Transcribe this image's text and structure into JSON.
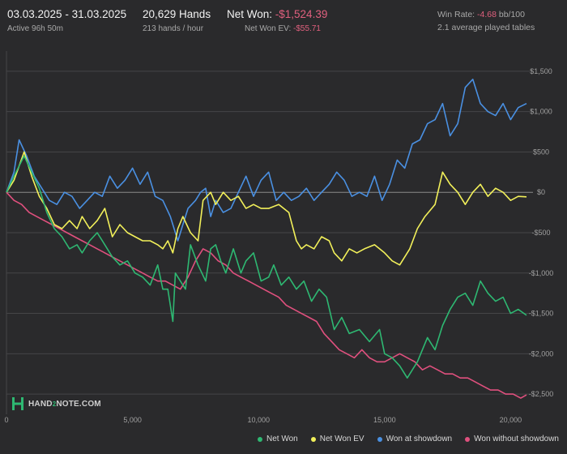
{
  "header": {
    "date_range": "03.03.2025 - 31.03.2025",
    "active": "Active 96h 50m",
    "hands": "20,629 Hands",
    "hands_rate": "213 hands / hour",
    "net_won_label": "Net Won: ",
    "net_won_value": "-$1,524.39",
    "net_won_ev_label": "Net Won  EV: ",
    "net_won_ev_value": "-$55.71",
    "win_rate_label": "Win Rate: ",
    "win_rate_value": "-4.68",
    "win_rate_unit": " bb/100",
    "tables": "2.1 average played tables"
  },
  "logo": {
    "part1": "HAND",
    "part2": "2",
    "part3": "NOTE.COM"
  },
  "colors": {
    "net_won": "#2eb872",
    "net_won_ev": "#f2f05a",
    "won_at_showdown": "#4a90e2",
    "won_without_showdown": "#e0507e",
    "negative_text": "#e0607e"
  },
  "chart_data": {
    "type": "line",
    "xlim": [
      0,
      20629
    ],
    "ylim": [
      -2750,
      1750
    ],
    "x_ticks": [
      0,
      5000,
      10000,
      15000,
      20000
    ],
    "x_tick_labels": [
      "0",
      "5,000",
      "10,000",
      "15,000",
      "20,000"
    ],
    "y_ticks": [
      1500,
      1000,
      500,
      0,
      -500,
      -1000,
      -1500,
      -2000,
      -2500
    ],
    "y_tick_labels": [
      "$1,500",
      "$1,000",
      "$500",
      "$0",
      "-$500",
      "-$1,000",
      "-$1,500",
      "-$2,000",
      "-$2,500"
    ],
    "grid": true,
    "legend_position": "bottom-right",
    "series": [
      {
        "name": "Net Won",
        "color": "#2eb872",
        "x": [
          0,
          300,
          700,
          1000,
          1300,
          1600,
          1900,
          2200,
          2500,
          2800,
          3000,
          3300,
          3600,
          3900,
          4200,
          4500,
          4800,
          5100,
          5400,
          5700,
          6000,
          6200,
          6400,
          6600,
          6700,
          6900,
          7100,
          7300,
          7600,
          7900,
          8100,
          8300,
          8500,
          8700,
          9000,
          9300,
          9500,
          9800,
          10100,
          10400,
          10600,
          10900,
          11200,
          11500,
          11800,
          12100,
          12400,
          12700,
          13000,
          13300,
          13600,
          14000,
          14400,
          14800,
          15000,
          15300,
          15600,
          15900,
          16300,
          16700,
          17000,
          17300,
          17600,
          17900,
          18200,
          18500,
          18800,
          19100,
          19400,
          19700,
          20000,
          20300,
          20629
        ],
        "y": [
          0,
          200,
          450,
          250,
          50,
          -250,
          -450,
          -550,
          -700,
          -650,
          -750,
          -600,
          -500,
          -650,
          -800,
          -900,
          -850,
          -1000,
          -1050,
          -1150,
          -900,
          -1200,
          -1200,
          -1600,
          -1000,
          -1100,
          -1200,
          -650,
          -900,
          -1100,
          -700,
          -650,
          -850,
          -1000,
          -700,
          -1000,
          -850,
          -750,
          -1100,
          -1050,
          -900,
          -1150,
          -1050,
          -1200,
          -1100,
          -1350,
          -1200,
          -1300,
          -1700,
          -1550,
          -1750,
          -1700,
          -1850,
          -1700,
          -2000,
          -2050,
          -2150,
          -2300,
          -2100,
          -1800,
          -1950,
          -1650,
          -1450,
          -1300,
          -1250,
          -1400,
          -1100,
          -1250,
          -1350,
          -1300,
          -1500,
          -1450,
          -1524
        ]
      },
      {
        "name": "Net Won  EV",
        "color": "#f2f05a",
        "x": [
          0,
          300,
          700,
          1000,
          1300,
          1600,
          1900,
          2200,
          2500,
          2800,
          3000,
          3300,
          3600,
          3900,
          4200,
          4500,
          4800,
          5100,
          5400,
          5700,
          6000,
          6200,
          6400,
          6600,
          6800,
          7000,
          7300,
          7600,
          7800,
          8100,
          8300,
          8600,
          8900,
          9200,
          9500,
          9800,
          10100,
          10400,
          10800,
          11200,
          11500,
          11700,
          11900,
          12200,
          12500,
          12800,
          13000,
          13300,
          13600,
          13900,
          14200,
          14600,
          15000,
          15300,
          15600,
          16000,
          16300,
          16600,
          17000,
          17300,
          17600,
          17900,
          18200,
          18500,
          18800,
          19100,
          19400,
          19700,
          20000,
          20300,
          20629
        ],
        "y": [
          0,
          150,
          500,
          200,
          -50,
          -200,
          -400,
          -450,
          -350,
          -450,
          -300,
          -450,
          -350,
          -200,
          -550,
          -400,
          -500,
          -550,
          -600,
          -600,
          -650,
          -700,
          -600,
          -750,
          -450,
          -300,
          -500,
          -600,
          -100,
          0,
          -150,
          0,
          -100,
          -50,
          -200,
          -150,
          -200,
          -200,
          -150,
          -250,
          -600,
          -700,
          -650,
          -700,
          -550,
          -600,
          -750,
          -850,
          -700,
          -750,
          -700,
          -650,
          -750,
          -850,
          -900,
          -700,
          -450,
          -300,
          -150,
          250,
          100,
          0,
          -150,
          0,
          100,
          -50,
          50,
          0,
          -100,
          -50,
          -56
        ]
      },
      {
        "name": "Won at showdown",
        "color": "#4a90e2",
        "x": [
          0,
          300,
          500,
          800,
          1100,
          1400,
          1700,
          2000,
          2300,
          2600,
          2900,
          3200,
          3500,
          3800,
          4100,
          4400,
          4700,
          5000,
          5300,
          5600,
          5900,
          6200,
          6500,
          6800,
          7000,
          7200,
          7500,
          7700,
          7900,
          8100,
          8300,
          8600,
          8900,
          9200,
          9500,
          9800,
          10100,
          10400,
          10700,
          11000,
          11300,
          11600,
          11900,
          12200,
          12500,
          12800,
          13100,
          13400,
          13700,
          14000,
          14300,
          14600,
          14900,
          15200,
          15500,
          15800,
          16100,
          16400,
          16700,
          17000,
          17300,
          17600,
          17900,
          18200,
          18500,
          18800,
          19100,
          19400,
          19700,
          20000,
          20300,
          20629
        ],
        "y": [
          0,
          250,
          650,
          450,
          200,
          50,
          -100,
          -150,
          0,
          -50,
          -200,
          -100,
          0,
          -50,
          200,
          50,
          150,
          300,
          100,
          250,
          -50,
          -100,
          -300,
          -600,
          -400,
          -200,
          -100,
          0,
          50,
          -300,
          -100,
          -250,
          -200,
          0,
          200,
          -50,
          150,
          250,
          -100,
          0,
          -100,
          -50,
          50,
          -100,
          0,
          100,
          250,
          150,
          -50,
          0,
          -50,
          200,
          -100,
          100,
          400,
          300,
          600,
          650,
          850,
          900,
          1100,
          700,
          850,
          1300,
          1400,
          1100,
          1000,
          950,
          1100,
          900,
          1050,
          1100
        ]
      },
      {
        "name": "Won without showdown",
        "color": "#e0507e",
        "x": [
          0,
          300,
          600,
          900,
          1200,
          1500,
          1800,
          2100,
          2400,
          2700,
          3000,
          3300,
          3600,
          3900,
          4200,
          4500,
          4800,
          5100,
          5400,
          5700,
          6000,
          6300,
          6600,
          6900,
          7200,
          7500,
          7800,
          8100,
          8400,
          8700,
          9000,
          9300,
          9600,
          9900,
          10200,
          10500,
          10800,
          11100,
          11400,
          11700,
          12000,
          12300,
          12600,
          12900,
          13200,
          13500,
          13800,
          14100,
          14400,
          14700,
          15000,
          15300,
          15600,
          15900,
          16200,
          16500,
          16800,
          17100,
          17400,
          17700,
          18000,
          18300,
          18600,
          18900,
          19200,
          19500,
          19800,
          20100,
          20400,
          20629
        ],
        "y": [
          0,
          -100,
          -150,
          -250,
          -300,
          -350,
          -400,
          -450,
          -500,
          -550,
          -600,
          -650,
          -700,
          -750,
          -800,
          -850,
          -900,
          -950,
          -1000,
          -1050,
          -1100,
          -1100,
          -1150,
          -1200,
          -1050,
          -850,
          -700,
          -750,
          -850,
          -900,
          -1000,
          -1050,
          -1100,
          -1150,
          -1200,
          -1250,
          -1300,
          -1400,
          -1450,
          -1500,
          -1550,
          -1600,
          -1750,
          -1850,
          -1950,
          -2000,
          -2050,
          -1950,
          -2050,
          -2100,
          -2100,
          -2050,
          -2000,
          -2050,
          -2100,
          -2200,
          -2150,
          -2200,
          -2250,
          -2250,
          -2300,
          -2300,
          -2350,
          -2400,
          -2450,
          -2450,
          -2500,
          -2500,
          -2550,
          -2510
        ]
      }
    ]
  }
}
